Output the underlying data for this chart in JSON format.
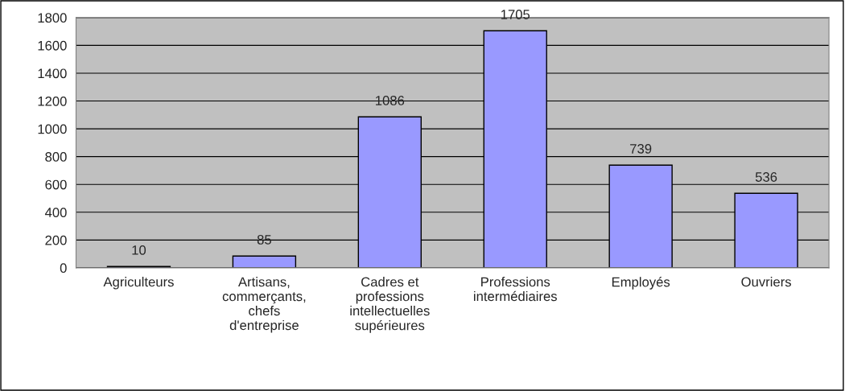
{
  "chart_data": {
    "type": "bar",
    "categories": [
      "Agriculteurs",
      "Artisans,\ncommerçants,\nchefs\nd'entreprise",
      "Cadres et\nprofessions\nintellectuelles\nsupérieures",
      "Professions\nintermédiaires",
      "Employés",
      "Ouvriers"
    ],
    "values": [
      10,
      85,
      1086,
      1705,
      739,
      536
    ],
    "color": "#9999ff",
    "ylim": [
      0,
      1800
    ],
    "yticks": [
      0,
      200,
      400,
      600,
      800,
      1000,
      1200,
      1400,
      1600,
      1800
    ],
    "grid": "y",
    "data_labels": true
  }
}
